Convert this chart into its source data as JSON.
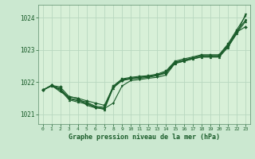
{
  "background_color": "#cbe8d0",
  "plot_bg_color": "#d8f0d8",
  "grid_color": "#b8d8c0",
  "line_color": "#1a5c2a",
  "title": "Graphe pression niveau de la mer (hPa)",
  "xlim": [
    -0.5,
    23.5
  ],
  "ylim": [
    1020.7,
    1024.4
  ],
  "yticks": [
    1021,
    1022,
    1023,
    1024
  ],
  "xticks": [
    0,
    1,
    2,
    3,
    4,
    5,
    6,
    7,
    8,
    9,
    10,
    11,
    12,
    13,
    14,
    15,
    16,
    17,
    18,
    19,
    20,
    21,
    22,
    23
  ],
  "series": [
    [
      1021.75,
      1021.9,
      1021.85,
      1021.55,
      1021.5,
      1021.42,
      1021.35,
      1021.28,
      1021.85,
      1022.05,
      1022.12,
      1022.15,
      1022.18,
      1022.22,
      1022.3,
      1022.6,
      1022.68,
      1022.75,
      1022.82,
      1022.82,
      1022.82,
      1023.15,
      1023.55,
      1023.72
    ],
    [
      1021.75,
      1021.9,
      1021.8,
      1021.5,
      1021.45,
      1021.38,
      1021.25,
      1021.22,
      1021.88,
      1022.1,
      1022.15,
      1022.18,
      1022.2,
      1022.25,
      1022.35,
      1022.65,
      1022.72,
      1022.78,
      1022.85,
      1022.85,
      1022.85,
      1023.18,
      1023.62,
      1024.05
    ],
    [
      1021.75,
      1021.88,
      1021.78,
      1021.48,
      1021.42,
      1021.35,
      1021.22,
      1021.18,
      1021.85,
      1022.08,
      1022.12,
      1022.15,
      1022.18,
      1022.22,
      1022.32,
      1022.62,
      1022.68,
      1022.75,
      1022.82,
      1022.82,
      1022.82,
      1023.12,
      1023.58,
      1023.92
    ],
    [
      1021.75,
      1021.88,
      1021.75,
      1021.45,
      1021.38,
      1021.32,
      1021.22,
      1021.15,
      1021.82,
      1022.05,
      1022.1,
      1022.12,
      1022.15,
      1022.2,
      1022.28,
      1022.58,
      1022.65,
      1022.72,
      1022.78,
      1022.78,
      1022.78,
      1023.08,
      1023.52,
      1023.88
    ]
  ],
  "series_zigzag": [
    1021.75,
    1021.9,
    1021.7,
    1021.55,
    1021.5,
    1021.28,
    1021.2,
    1021.18,
    1021.35,
    1021.88,
    1022.05,
    1022.08,
    1022.12,
    1022.15,
    1022.22,
    1022.58,
    1022.65,
    1022.72,
    1022.78,
    1022.78,
    1022.78,
    1023.08,
    1023.5,
    1024.1
  ]
}
